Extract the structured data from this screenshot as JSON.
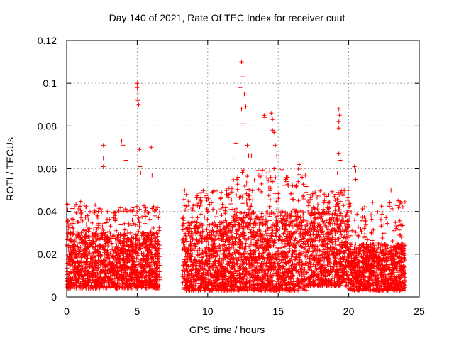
{
  "chart_data": {
    "type": "scatter",
    "title": "Day 140 of 2021, Rate Of TEC Index for receiver cuut",
    "xlabel": "GPS time / hours",
    "ylabel": "ROTI / TECUs",
    "xlim": [
      0,
      25
    ],
    "ylim": [
      0,
      0.12
    ],
    "x_ticks": [
      "0",
      "5",
      "10",
      "15",
      "20",
      "25"
    ],
    "y_ticks": [
      "0",
      "0.02",
      "0.04",
      "0.06",
      "0.08",
      "0.1",
      "0.12"
    ],
    "x_tick_values": [
      0,
      5,
      10,
      15,
      20,
      25
    ],
    "y_tick_values": [
      0,
      0.02,
      0.04,
      0.06,
      0.08,
      0.1,
      0.12
    ],
    "grid": true,
    "marker": "+",
    "color": "#ff0000",
    "data_gap_hours": [
      6.6,
      8.2
    ],
    "series": [
      {
        "segments": [
          {
            "x_range": [
              0.0,
              1.5
            ],
            "y_base": [
              0.004,
              0.03
            ],
            "y_peak": 0.045
          },
          {
            "x_range": [
              1.5,
              6.6
            ],
            "y_base": [
              0.004,
              0.03
            ],
            "y_peak": 0.043
          },
          {
            "x_range": [
              8.2,
              11.5
            ],
            "y_base": [
              0.003,
              0.035
            ],
            "y_peak": 0.05
          },
          {
            "x_range": [
              11.5,
              17.0
            ],
            "y_base": [
              0.003,
              0.04
            ],
            "y_peak": 0.06
          },
          {
            "x_range": [
              17.0,
              20.0
            ],
            "y_base": [
              0.005,
              0.04
            ],
            "y_peak": 0.05
          },
          {
            "x_range": [
              20.0,
              24.0
            ],
            "y_base": [
              0.003,
              0.025
            ],
            "y_peak": 0.045
          }
        ],
        "outliers": [
          {
            "x": 2.6,
            "y": 0.071
          },
          {
            "x": 2.6,
            "y": 0.065
          },
          {
            "x": 2.6,
            "y": 0.061
          },
          {
            "x": 3.9,
            "y": 0.073
          },
          {
            "x": 4.0,
            "y": 0.071
          },
          {
            "x": 4.2,
            "y": 0.064
          },
          {
            "x": 5.0,
            "y": 0.1
          },
          {
            "x": 5.0,
            "y": 0.098
          },
          {
            "x": 5.05,
            "y": 0.095
          },
          {
            "x": 5.05,
            "y": 0.092
          },
          {
            "x": 5.1,
            "y": 0.09
          },
          {
            "x": 5.15,
            "y": 0.069
          },
          {
            "x": 5.2,
            "y": 0.061
          },
          {
            "x": 5.25,
            "y": 0.058
          },
          {
            "x": 6.0,
            "y": 0.07
          },
          {
            "x": 6.05,
            "y": 0.057
          },
          {
            "x": 11.8,
            "y": 0.065
          },
          {
            "x": 12.0,
            "y": 0.072
          },
          {
            "x": 12.3,
            "y": 0.098
          },
          {
            "x": 12.4,
            "y": 0.11
          },
          {
            "x": 12.5,
            "y": 0.103
          },
          {
            "x": 12.6,
            "y": 0.095
          },
          {
            "x": 12.4,
            "y": 0.088
          },
          {
            "x": 12.7,
            "y": 0.089
          },
          {
            "x": 12.5,
            "y": 0.081
          },
          {
            "x": 12.8,
            "y": 0.071
          },
          {
            "x": 12.9,
            "y": 0.066
          },
          {
            "x": 13.1,
            "y": 0.066
          },
          {
            "x": 12.5,
            "y": 0.058
          },
          {
            "x": 14.0,
            "y": 0.085
          },
          {
            "x": 14.05,
            "y": 0.084
          },
          {
            "x": 14.5,
            "y": 0.086
          },
          {
            "x": 14.6,
            "y": 0.083
          },
          {
            "x": 14.6,
            "y": 0.078
          },
          {
            "x": 14.7,
            "y": 0.077
          },
          {
            "x": 14.8,
            "y": 0.071
          },
          {
            "x": 14.9,
            "y": 0.066
          },
          {
            "x": 14.7,
            "y": 0.06
          },
          {
            "x": 16.5,
            "y": 0.062
          },
          {
            "x": 16.7,
            "y": 0.056
          },
          {
            "x": 19.3,
            "y": 0.088
          },
          {
            "x": 19.35,
            "y": 0.085
          },
          {
            "x": 19.3,
            "y": 0.082
          },
          {
            "x": 19.3,
            "y": 0.079
          },
          {
            "x": 19.3,
            "y": 0.067
          },
          {
            "x": 19.4,
            "y": 0.064
          },
          {
            "x": 19.2,
            "y": 0.058
          },
          {
            "x": 20.4,
            "y": 0.061
          },
          {
            "x": 20.5,
            "y": 0.059
          },
          {
            "x": 20.5,
            "y": 0.055
          },
          {
            "x": 23.0,
            "y": 0.05
          },
          {
            "x": 23.5,
            "y": 0.045
          },
          {
            "x": 23.6,
            "y": 0.043
          }
        ]
      }
    ]
  }
}
